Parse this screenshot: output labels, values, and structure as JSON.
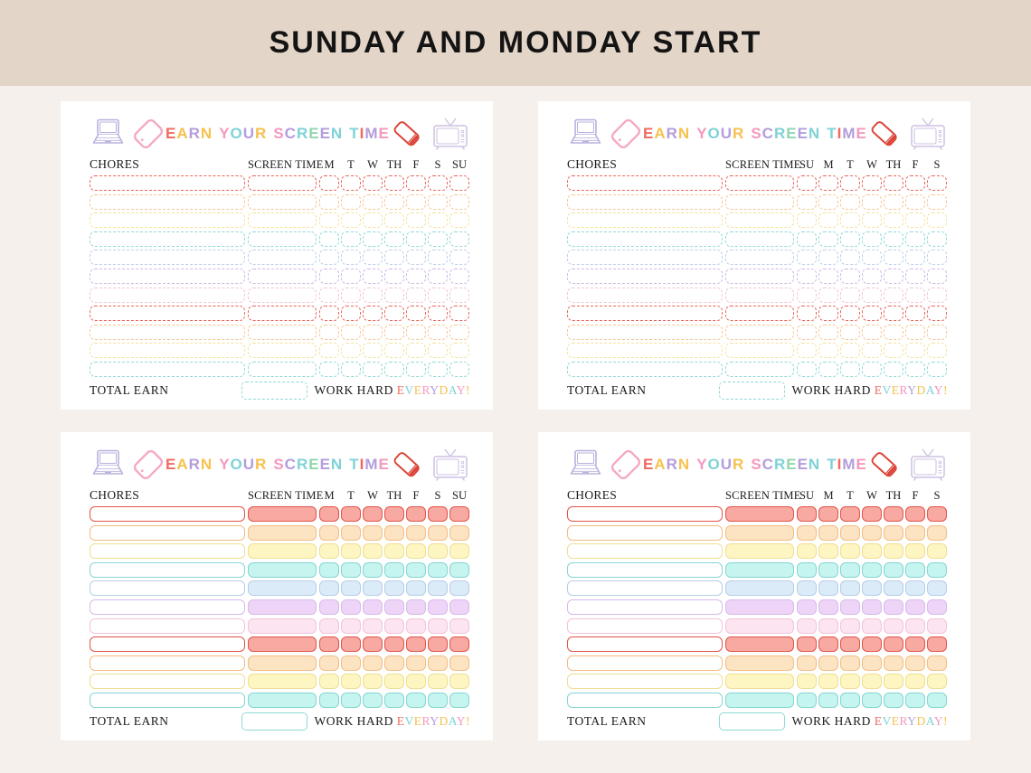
{
  "page": {
    "title": "SUNDAY AND MONDAY START",
    "background": "#f5f0eb",
    "band_background": "#e3d5c8",
    "title_color": "#141414",
    "card_background": "#ffffff"
  },
  "chart_common": {
    "title": "EARN YOUR SCREEN TIME",
    "title_letters": [
      {
        "ch": "E",
        "color": "#f0695f"
      },
      {
        "ch": "A",
        "color": "#f6c14f"
      },
      {
        "ch": "R",
        "color": "#b49ddc"
      },
      {
        "ch": "N",
        "color": "#f6c14f"
      },
      {
        "ch": " ",
        "color": null
      },
      {
        "ch": "Y",
        "color": "#f598bd"
      },
      {
        "ch": "O",
        "color": "#7fd2d8"
      },
      {
        "ch": "U",
        "color": "#b49ddc"
      },
      {
        "ch": "R",
        "color": "#f6c14f"
      },
      {
        "ch": " ",
        "color": null
      },
      {
        "ch": "S",
        "color": "#f598bd"
      },
      {
        "ch": "C",
        "color": "#b49ddc"
      },
      {
        "ch": "R",
        "color": "#7fd2d8"
      },
      {
        "ch": "E",
        "color": "#90d7ae"
      },
      {
        "ch": "E",
        "color": "#b49ddc"
      },
      {
        "ch": "N",
        "color": "#7fd2d8"
      },
      {
        "ch": " ",
        "color": null
      },
      {
        "ch": "T",
        "color": "#7fd2d8"
      },
      {
        "ch": "I",
        "color": "#f0695f"
      },
      {
        "ch": "M",
        "color": "#b49ddc"
      },
      {
        "ch": "E",
        "color": "#f598bd"
      }
    ],
    "chores_label": "CHORES",
    "screen_time_label": "SCREEN TIME",
    "total_earn_label": "TOTAL EARN",
    "work_hard_label": "WORK HARD",
    "everyday_letters": [
      {
        "ch": "E",
        "color": "#f0695f"
      },
      {
        "ch": "V",
        "color": "#7fd2d8"
      },
      {
        "ch": "E",
        "color": "#f6c14f"
      },
      {
        "ch": "R",
        "color": "#f598bd"
      },
      {
        "ch": "Y",
        "color": "#b49ddc"
      },
      {
        "ch": "D",
        "color": "#f6c14f"
      },
      {
        "ch": "A",
        "color": "#7fd2d8"
      },
      {
        "ch": "Y",
        "color": "#f598bd"
      },
      {
        "ch": "!",
        "color": "#f6c14f"
      }
    ],
    "footer_box_color": "#8fd9d5",
    "icons": {
      "laptop": {
        "name": "laptop-icon",
        "color": "#b9b0dd"
      },
      "tablet": {
        "name": "tablet-icon",
        "color": "#f4a9c5"
      },
      "phone": {
        "name": "phone-icon",
        "color": "#dc4539"
      },
      "tv": {
        "name": "tv-icon",
        "color": "#cdc2e2"
      }
    },
    "num_rows": 11,
    "row_color_sequence": [
      0,
      1,
      2,
      3,
      4,
      5,
      6,
      0,
      1,
      2,
      3
    ],
    "row_colors": [
      {
        "name": "red",
        "dash": "#e8675c",
        "border": "#e25449",
        "fill": "#f8a9a2"
      },
      {
        "name": "orange",
        "dash": "#f6c795",
        "border": "#f2bd83",
        "fill": "#fce4c2"
      },
      {
        "name": "yellow",
        "dash": "#f2e39b",
        "border": "#efdf93",
        "fill": "#fdf6c2"
      },
      {
        "name": "cyan",
        "dash": "#8fd9d5",
        "border": "#84d6d2",
        "fill": "#c6f4ef"
      },
      {
        "name": "blue",
        "dash": "#bccfe9",
        "border": "#b5cde9",
        "fill": "#dcebf8"
      },
      {
        "name": "purple",
        "dash": "#cbb9e6",
        "border": "#d7b9ea",
        "fill": "#eed5f7"
      },
      {
        "name": "pink",
        "dash": "#f0c4da",
        "border": "#f3c3da",
        "fill": "#fce4f1"
      }
    ]
  },
  "charts": [
    {
      "id": "top-left",
      "style": "dashed",
      "days": [
        "M",
        "T",
        "W",
        "TH",
        "F",
        "S",
        "SU"
      ]
    },
    {
      "id": "top-right",
      "style": "dashed",
      "days": [
        "SU",
        "M",
        "T",
        "W",
        "TH",
        "F",
        "S"
      ]
    },
    {
      "id": "bottom-left",
      "style": "filled",
      "days": [
        "M",
        "T",
        "W",
        "TH",
        "F",
        "S",
        "SU"
      ]
    },
    {
      "id": "bottom-right",
      "style": "filled",
      "days": [
        "SU",
        "M",
        "T",
        "W",
        "TH",
        "F",
        "S"
      ]
    }
  ]
}
